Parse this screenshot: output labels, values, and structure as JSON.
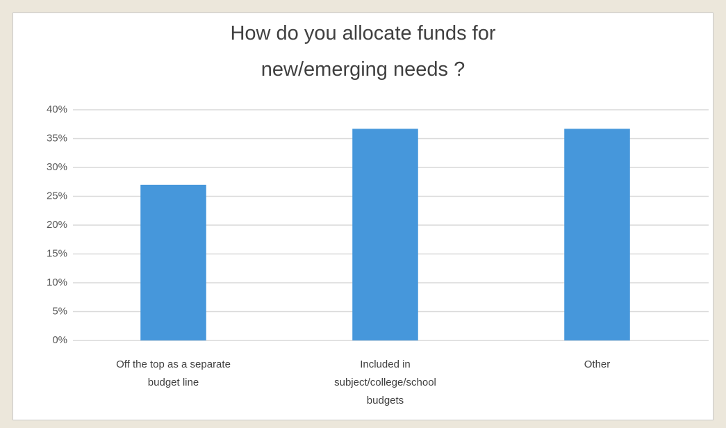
{
  "chart_data": {
    "type": "bar",
    "title": [
      "How do you allocate funds for",
      "new/emerging needs ?"
    ],
    "categories": [
      "Off the top as a separate budget line",
      "Included in subject/college/school budgets",
      "Other"
    ],
    "values": [
      27,
      36.7,
      36.7
    ],
    "color": "#4697db",
    "ylim": [
      0,
      40
    ],
    "yticks": [
      {
        "value": 0,
        "label": "0%"
      },
      {
        "value": 5,
        "label": "5%"
      },
      {
        "value": 10,
        "label": "10%"
      },
      {
        "value": 15,
        "label": "15%"
      },
      {
        "value": 20,
        "label": "20%"
      },
      {
        "value": 25,
        "label": "25%"
      },
      {
        "value": 30,
        "label": "30%"
      },
      {
        "value": 35,
        "label": "35%"
      },
      {
        "value": 40,
        "label": "40%"
      }
    ],
    "grid": true
  }
}
